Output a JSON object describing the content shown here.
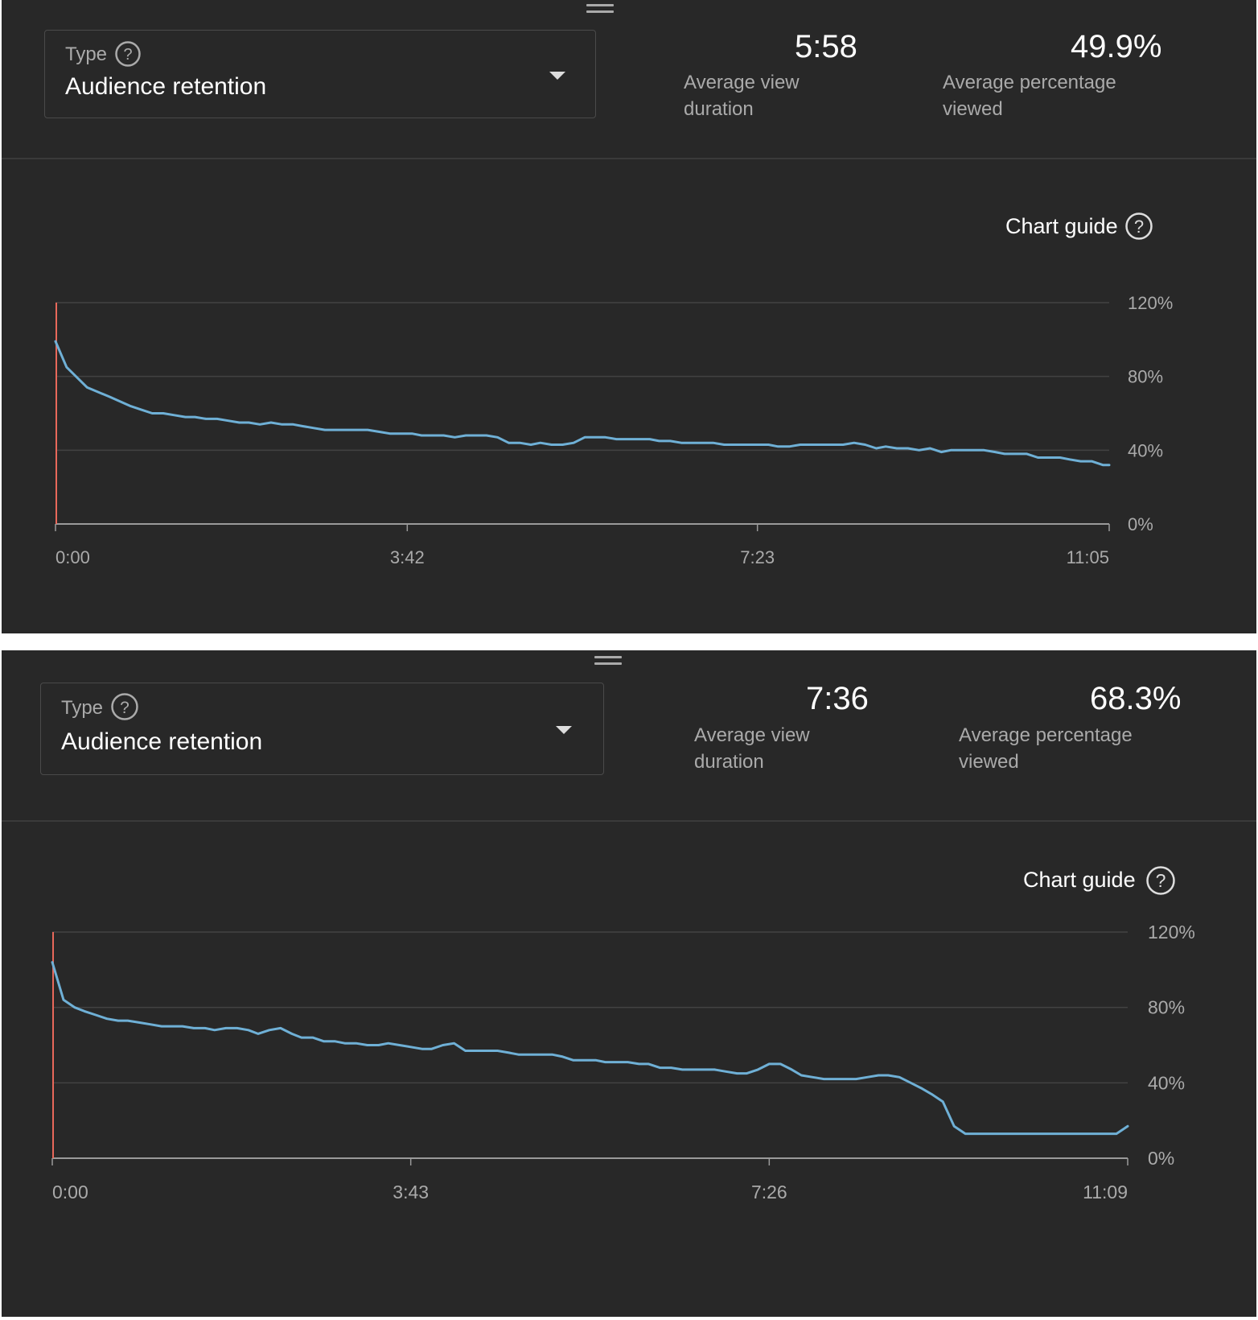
{
  "colors": {
    "background": "#282828",
    "line": "#6fb0d6",
    "playhead": "#e8685a",
    "gridline": "#424242",
    "axis": "#9a9a9a",
    "muted_text": "#aaaaaa"
  },
  "panels": [
    {
      "type_label": "Type",
      "type_value": "Audience retention",
      "avg_view_duration_value": "5:58",
      "avg_view_duration_label": "Average view duration",
      "avg_pct_viewed_value": "49.9%",
      "avg_pct_viewed_label": "Average percentage viewed",
      "chart_guide_label": "Chart guide"
    },
    {
      "type_label": "Type",
      "type_value": "Audience retention",
      "avg_view_duration_value": "7:36",
      "avg_view_duration_label": "Average view duration",
      "avg_pct_viewed_value": "68.3%",
      "avg_pct_viewed_label": "Average percentage viewed",
      "chart_guide_label": "Chart guide"
    }
  ],
  "chart_data": [
    {
      "type": "line",
      "title": "",
      "xlabel": "",
      "ylabel": "",
      "x_unit": "seconds",
      "xlim": [
        0,
        665
      ],
      "ylim": [
        0,
        120
      ],
      "x_ticks": [
        0,
        222,
        443,
        665
      ],
      "x_tick_labels": [
        "0:00",
        "3:42",
        "7:23",
        "11:05"
      ],
      "y_ticks": [
        0,
        40,
        80,
        120
      ],
      "y_tick_labels": [
        "0%",
        "40%",
        "80%",
        "120%"
      ],
      "grid": true,
      "series": [
        {
          "name": "",
          "x": [
            0,
            7,
            20,
            34,
            47,
            54,
            61,
            68,
            75,
            82,
            88,
            95,
            102,
            109,
            116,
            122,
            129,
            136,
            143,
            150,
            156,
            163,
            170,
            177,
            184,
            191,
            197,
            204,
            211,
            218,
            225,
            231,
            238,
            245,
            252,
            259,
            266,
            272,
            279,
            286,
            293,
            300,
            306,
            313,
            320,
            327,
            334,
            340,
            347,
            354,
            361,
            368,
            375,
            381,
            388,
            395,
            402,
            409,
            415,
            422,
            429,
            436,
            443,
            450,
            456,
            463,
            470,
            477,
            484,
            490,
            497,
            504,
            511,
            518,
            524,
            531,
            538,
            545,
            552,
            559,
            565,
            572,
            579,
            586,
            593,
            599,
            606,
            613,
            620,
            627,
            634,
            640,
            647,
            654,
            661,
            665
          ],
          "values": [
            99,
            85,
            74,
            69,
            64,
            62,
            60,
            60,
            59,
            58,
            58,
            57,
            57,
            56,
            55,
            55,
            54,
            55,
            54,
            54,
            53,
            52,
            51,
            51,
            51,
            51,
            51,
            50,
            49,
            49,
            49,
            48,
            48,
            48,
            47,
            48,
            48,
            48,
            47,
            44,
            44,
            43,
            44,
            43,
            43,
            44,
            47,
            47,
            47,
            46,
            46,
            46,
            46,
            45,
            45,
            44,
            44,
            44,
            44,
            43,
            43,
            43,
            43,
            43,
            42,
            42,
            43,
            43,
            43,
            43,
            43,
            44,
            43,
            41,
            42,
            41,
            41,
            40,
            41,
            39,
            40,
            40,
            40,
            40,
            39,
            38,
            38,
            38,
            36,
            36,
            36,
            35,
            34,
            34,
            32,
            32
          ]
        }
      ]
    },
    {
      "type": "line",
      "title": "",
      "xlabel": "",
      "ylabel": "",
      "x_unit": "seconds",
      "xlim": [
        0,
        669
      ],
      "ylim": [
        0,
        120
      ],
      "x_ticks": [
        0,
        223,
        446,
        669
      ],
      "x_tick_labels": [
        "0:00",
        "3:43",
        "7:26",
        "11:09"
      ],
      "y_ticks": [
        0,
        40,
        80,
        120
      ],
      "y_tick_labels": [
        "0%",
        "40%",
        "80%",
        "120%"
      ],
      "grid": true,
      "series": [
        {
          "name": "",
          "x": [
            0,
            7,
            14,
            20,
            27,
            34,
            41,
            47,
            54,
            61,
            68,
            74,
            81,
            88,
            95,
            101,
            108,
            115,
            122,
            128,
            135,
            142,
            149,
            155,
            162,
            169,
            176,
            182,
            189,
            196,
            203,
            209,
            216,
            223,
            230,
            236,
            243,
            250,
            257,
            263,
            270,
            277,
            284,
            290,
            297,
            304,
            311,
            317,
            324,
            331,
            338,
            344,
            351,
            358,
            365,
            371,
            378,
            385,
            392,
            399,
            405,
            412,
            419,
            426,
            432,
            439,
            446,
            453,
            460,
            466,
            473,
            480,
            487,
            493,
            500,
            507,
            514,
            520,
            527,
            534,
            541,
            547,
            554,
            561,
            568,
            574,
            581,
            588,
            595,
            601,
            608,
            615,
            622,
            628,
            635,
            642,
            649,
            655,
            662,
            669
          ],
          "values": [
            104,
            84,
            80,
            78,
            76,
            74,
            73,
            73,
            72,
            71,
            70,
            70,
            70,
            69,
            69,
            68,
            69,
            69,
            68,
            66,
            68,
            69,
            66,
            64,
            64,
            62,
            62,
            61,
            61,
            60,
            60,
            61,
            60,
            59,
            58,
            58,
            60,
            61,
            57,
            57,
            57,
            57,
            56,
            55,
            55,
            55,
            55,
            54,
            52,
            52,
            52,
            51,
            51,
            51,
            50,
            50,
            48,
            48,
            47,
            47,
            47,
            47,
            46,
            45,
            45,
            47,
            50,
            50,
            47,
            44,
            43,
            42,
            42,
            42,
            42,
            43,
            44,
            44,
            43,
            40,
            37,
            34,
            30,
            17,
            13,
            13,
            13,
            13,
            13,
            13,
            13,
            13,
            13,
            13,
            13,
            13,
            13,
            13,
            13,
            17
          ]
        }
      ]
    }
  ]
}
